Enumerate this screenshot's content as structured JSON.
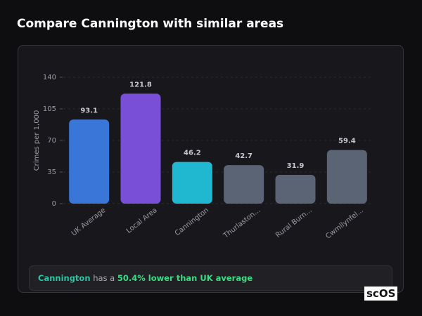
{
  "header": {
    "title": "Compare Cannington with similar areas"
  },
  "chart_data": {
    "type": "bar",
    "y_label": "Crimes per 1,000",
    "categories": [
      "UK Average",
      "Local Area",
      "Cannington",
      "Thurlaston...",
      "Rural Burn...",
      "Cwmllynfel..."
    ],
    "values": [
      93.1,
      121.8,
      46.2,
      42.7,
      31.9,
      59.4
    ],
    "colors": [
      "#3a76d8",
      "#7a4fd8",
      "#20b8d0",
      "#5b6475",
      "#5b6475",
      "#5b6475"
    ],
    "ylim": [
      0,
      140
    ],
    "yticks": [
      0,
      35,
      70,
      105,
      140
    ],
    "grid": true
  },
  "footer": {
    "area": "Cannington",
    "text": "has a",
    "highlight": "50.4% lower than UK average"
  },
  "logo": "scOS"
}
